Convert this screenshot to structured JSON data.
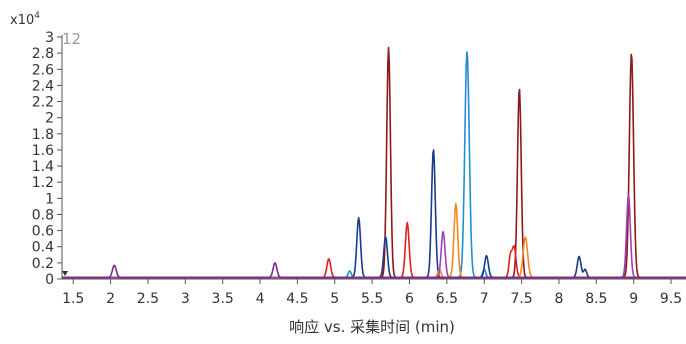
{
  "chart_data": {
    "type": "line",
    "title": "",
    "xlabel": "响应 vs. 采集时间 (min)",
    "ylabel": "",
    "y_multiplier": "x10",
    "y_multiplier_exp": "4",
    "panel_label": "12",
    "xlim": [
      1.35,
      9.7
    ],
    "ylim": [
      0,
      3.0
    ],
    "x_ticks": [
      "1.5",
      "2",
      "2.5",
      "3",
      "3.5",
      "4",
      "4.5",
      "5",
      "5.5",
      "6",
      "6.5",
      "7",
      "7.5",
      "8",
      "8.5",
      "9",
      "9.5"
    ],
    "y_ticks": [
      "0",
      "0.2",
      "0.4",
      "0.6",
      "0.8",
      "1",
      "1.2",
      "1.4",
      "1.6",
      "1.8",
      "2",
      "2.2",
      "2.4",
      "2.6",
      "2.8",
      "3"
    ],
    "grid": false,
    "legend": "none",
    "baseline": 0.02,
    "series": [
      {
        "color": "#8b1a1a",
        "peaks": [
          [
            5.72,
            2.85,
            0.025
          ],
          [
            7.47,
            2.35,
            0.025
          ],
          [
            8.97,
            2.78,
            0.028
          ]
        ]
      },
      {
        "color": "#1e8fd6",
        "peaks": [
          [
            6.77,
            2.8,
            0.03
          ],
          [
            7.0,
            0.1,
            0.02
          ],
          [
            5.2,
            0.08,
            0.02
          ]
        ]
      },
      {
        "color": "#1a3a8c",
        "peaks": [
          [
            5.32,
            0.74,
            0.025
          ],
          [
            6.32,
            1.59,
            0.025
          ],
          [
            5.68,
            0.5,
            0.025
          ],
          [
            7.03,
            0.27,
            0.025
          ],
          [
            8.27,
            0.26,
            0.025
          ],
          [
            8.35,
            0.1,
            0.02
          ]
        ]
      },
      {
        "color": "#e02020",
        "peaks": [
          [
            4.92,
            0.23,
            0.025
          ],
          [
            5.97,
            0.68,
            0.025
          ],
          [
            7.4,
            0.38,
            0.025
          ],
          [
            7.35,
            0.25,
            0.02
          ]
        ]
      },
      {
        "color": "#f08a20",
        "peaks": [
          [
            6.62,
            0.91,
            0.025
          ],
          [
            7.55,
            0.5,
            0.03
          ],
          [
            6.4,
            0.1,
            0.02
          ]
        ]
      },
      {
        "color": "#a040b8",
        "peaks": [
          [
            6.45,
            0.57,
            0.025
          ],
          [
            8.93,
            1.03,
            0.025
          ]
        ]
      },
      {
        "color": "#7a2a8a",
        "peaks": [
          [
            2.05,
            0.15,
            0.025
          ],
          [
            4.2,
            0.18,
            0.025
          ]
        ]
      }
    ]
  }
}
